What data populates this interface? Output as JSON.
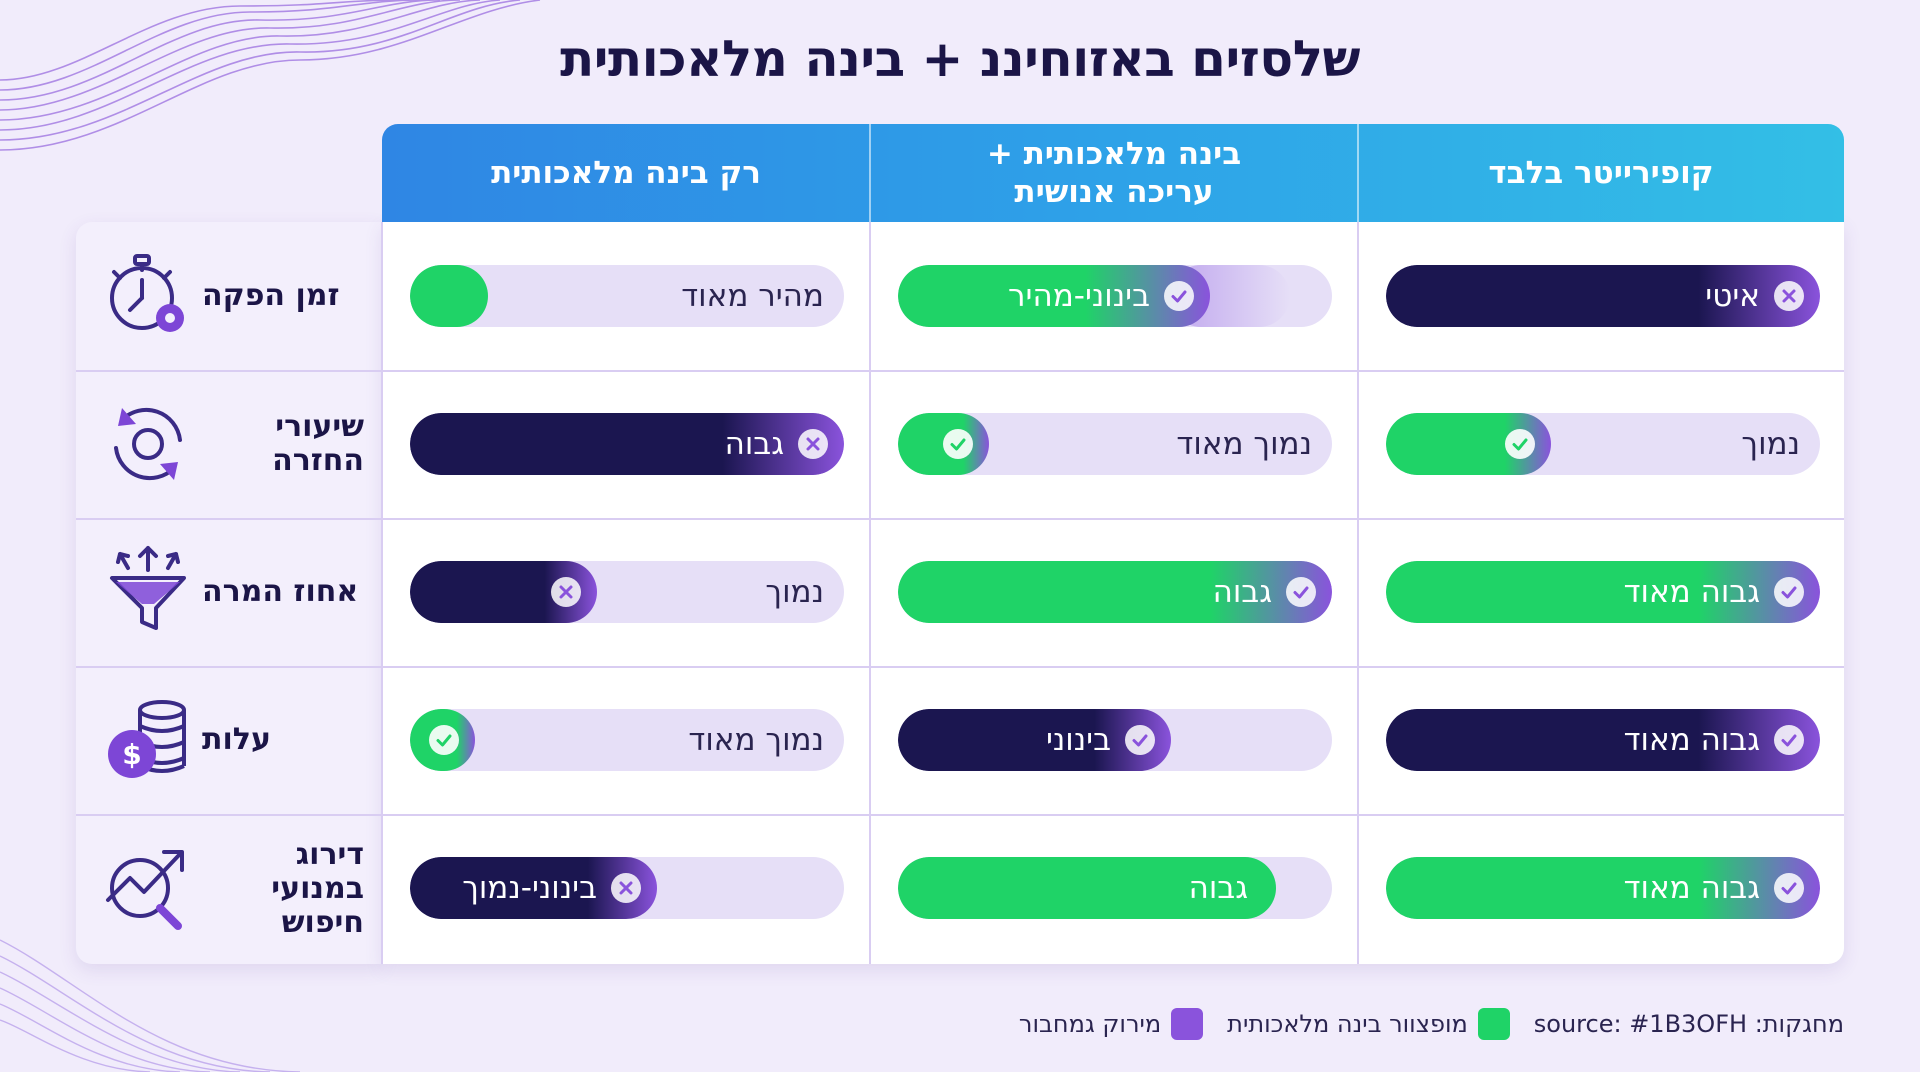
{
  "title": "שלסזים באזוחיננ + בינה מלאכותית",
  "colors": {
    "green": "#1fd367",
    "navy": "#1b1650",
    "purple": "#8a53dc",
    "track": "#e6dff7",
    "header_from": "#2f86e4",
    "header_to": "#33bfe6"
  },
  "columns": [
    {
      "line1": "רק בינה מלאכותית",
      "line2": ""
    },
    {
      "line1": "בינה מלאכותית +",
      "line2": "עריכה אנושית"
    },
    {
      "line1": "קופירייטר בלבד",
      "line2": ""
    }
  ],
  "rows": [
    {
      "label": "זמן הפקה",
      "icon": "stopwatch-gear-icon",
      "cells": [
        {
          "text": "מהיר מאוד",
          "style": "green",
          "level": 0.18,
          "badge": "none"
        },
        {
          "text": "בינוני-מהיר",
          "style": "green",
          "level": 0.72,
          "badge": "check",
          "fade": true
        },
        {
          "text": "איטי",
          "style": "navy",
          "level": 1.0,
          "badge": "x"
        }
      ]
    },
    {
      "label": "שיעורי החזרה",
      "icon": "refresh-cycle-icon",
      "cells": [
        {
          "text": "גבוה",
          "style": "navy",
          "level": 1.0,
          "badge": "x"
        },
        {
          "text": "נמוך מאוד",
          "style": "green",
          "level": 0.21,
          "badge": "check"
        },
        {
          "text": "נמוך",
          "style": "green",
          "level": 0.38,
          "badge": "check"
        }
      ]
    },
    {
      "label": "אחוז המרה",
      "icon": "funnel-arrows-icon",
      "cells": [
        {
          "text": "נמוך",
          "style": "navy",
          "level": 0.43,
          "badge": "x"
        },
        {
          "text": "גבוה",
          "style": "green",
          "level": 1.0,
          "badge": "check"
        },
        {
          "text": "גבוה מאוד",
          "style": "green",
          "level": 1.0,
          "badge": "check"
        }
      ]
    },
    {
      "label": "עלות",
      "icon": "coins-stack-icon",
      "cells": [
        {
          "text": "נמוך מאוד",
          "style": "green",
          "level": 0.15,
          "badge": "check"
        },
        {
          "text": "בינוני",
          "style": "navy",
          "level": 0.63,
          "badge": "check"
        },
        {
          "text": "גבוה מאוד",
          "style": "navy",
          "level": 1.0,
          "badge": "check"
        }
      ]
    },
    {
      "label": "דירוג במנועי חיפוש",
      "icon": "trend-magnifier-icon",
      "cells": [
        {
          "text": "בינוני-נמוך",
          "style": "navy",
          "level": 0.57,
          "badge": "x"
        },
        {
          "text": "גבוה",
          "style": "green",
          "level": 0.87,
          "badge": "none"
        },
        {
          "text": "גבוה מאוד",
          "style": "green",
          "level": 1.0,
          "badge": "check"
        }
      ]
    }
  ],
  "legend": {
    "source": "מחגקות: source: #1B3OFH",
    "green_label": "מופצוור בינה מלאכותית",
    "purple_label": "מירוק גמחבור"
  }
}
